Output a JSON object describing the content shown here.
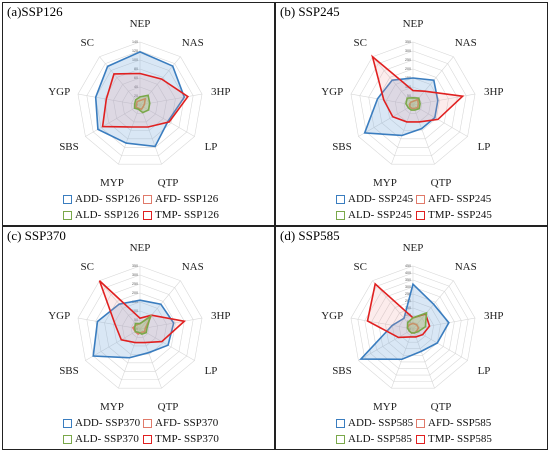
{
  "axes": [
    "NEP",
    "NAS",
    "3HP",
    "LP",
    "QTP",
    "MYP",
    "SBS",
    "YGP",
    "SC"
  ],
  "series_meta": [
    {
      "name": "ADD",
      "color": "#3a7dbf",
      "fill": "rgba(120,170,220,0.28)"
    },
    {
      "name": "AFD",
      "color": "#e07a6a",
      "fill": "rgba(230,150,140,0.10)"
    },
    {
      "name": "ALD",
      "color": "#7aa84a",
      "fill": "rgba(150,190,100,0.35)"
    },
    {
      "name": "TMP",
      "color": "#e02020",
      "fill": "rgba(240,150,150,0.18)"
    }
  ],
  "chart_data": [
    {
      "type": "radar",
      "title": "(a)SSP126",
      "scenario": "SSP126",
      "rmax": 140,
      "ticks": [
        0,
        20,
        40,
        60,
        80,
        100,
        120,
        140
      ],
      "series": [
        {
          "name": "ADD",
          "values": [
            118,
            113,
            100,
            72,
            98,
            90,
            108,
            100,
            112
          ]
        },
        {
          "name": "AFD",
          "values": [
            10,
            18,
            10,
            8,
            10,
            8,
            10,
            8,
            10
          ]
        },
        {
          "name": "ALD",
          "values": [
            18,
            28,
            22,
            22,
            18,
            10,
            14,
            12,
            15
          ]
        },
        {
          "name": "TMP",
          "values": [
            70,
            75,
            108,
            75,
            52,
            52,
            96,
            76,
            90
          ]
        }
      ],
      "legend": [
        "ADD- SSP126",
        "AFD- SSP126",
        "ALD- SSP126",
        "TMP- SSP126"
      ]
    },
    {
      "type": "radar",
      "title": "(b) SSP245",
      "scenario": "SSP245",
      "rmax": 350,
      "ticks": [
        0,
        50,
        100,
        150,
        200,
        250,
        300,
        350
      ],
      "series": [
        {
          "name": "ADD",
          "values": [
            150,
            180,
            140,
            140,
            140,
            180,
            310,
            200,
            180
          ]
        },
        {
          "name": "AFD",
          "values": [
            20,
            40,
            30,
            30,
            20,
            20,
            20,
            20,
            20
          ]
        },
        {
          "name": "ALD",
          "values": [
            40,
            50,
            40,
            40,
            30,
            30,
            30,
            40,
            50
          ]
        },
        {
          "name": "TMP",
          "values": [
            80,
            100,
            280,
            160,
            100,
            100,
            130,
            165,
            350
          ]
        }
      ],
      "legend": [
        "ADD- SSP245",
        "AFD- SSP245",
        "ALD- SSP245",
        "TMP- SSP245"
      ]
    },
    {
      "type": "radar",
      "title": "(c) SSP370",
      "scenario": "SSP370",
      "rmax": 350,
      "ticks": [
        0,
        50,
        100,
        150,
        200,
        250,
        300,
        350
      ],
      "series": [
        {
          "name": "ADD",
          "values": [
            160,
            180,
            190,
            180,
            140,
            170,
            300,
            240,
            180
          ]
        },
        {
          "name": "AFD",
          "values": [
            30,
            100,
            30,
            30,
            20,
            30,
            30,
            40,
            30
          ]
        },
        {
          "name": "ALD",
          "values": [
            30,
            90,
            40,
            40,
            30,
            20,
            30,
            30,
            40
          ]
        },
        {
          "name": "TMP",
          "values": [
            60,
            100,
            250,
            140,
            80,
            80,
            120,
            140,
            350
          ]
        }
      ],
      "legend": [
        "ADD- SSP370",
        "AFD- SSP370",
        "ALD- SSP370",
        "TMP- SSP370"
      ]
    },
    {
      "type": "radar",
      "title": "(d) SSP585",
      "scenario": "SSP585",
      "rmax": 450,
      "ticks": [
        0,
        50,
        100,
        150,
        200,
        250,
        300,
        350,
        400,
        450
      ],
      "series": [
        {
          "name": "ADD",
          "values": [
            320,
            230,
            260,
            200,
            170,
            230,
            430,
            150,
            100
          ]
        },
        {
          "name": "AFD",
          "values": [
            40,
            40,
            40,
            30,
            30,
            30,
            30,
            40,
            40
          ]
        },
        {
          "name": "ALD",
          "values": [
            80,
            150,
            90,
            40,
            30,
            30,
            30,
            40,
            60
          ]
        },
        {
          "name": "TMP",
          "values": [
            80,
            140,
            120,
            80,
            60,
            60,
            120,
            330,
            420
          ]
        }
      ],
      "legend": [
        "ADD- SSP585",
        "AFD- SSP585",
        "ALD- SSP585",
        "TMP- SSP585"
      ]
    }
  ]
}
